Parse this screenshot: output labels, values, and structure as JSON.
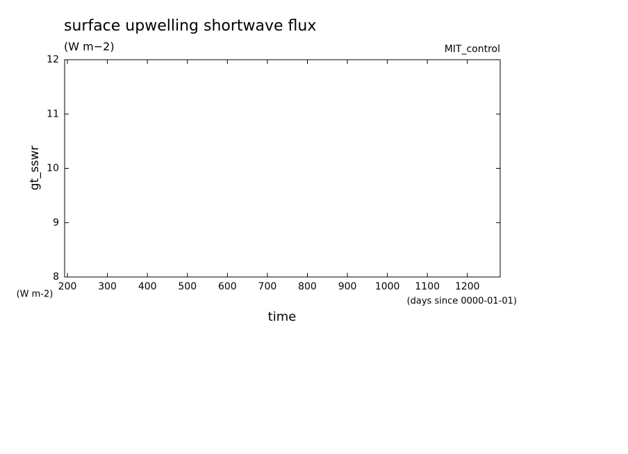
{
  "chart_data": {
    "type": "line",
    "title": "surface upwelling shortwave flux",
    "subtitle": "(W m−2)",
    "annotation": "MIT_control",
    "ylabel": "gt_sswr",
    "yunits": "(W m-2)",
    "xlabel": "time",
    "xunits": "(days since 0000-01-01)",
    "series": [],
    "xlim": [
      193,
      1282
    ],
    "xticks": [
      200,
      300,
      400,
      500,
      600,
      700,
      800,
      900,
      1000,
      1100,
      1200
    ],
    "ylim": [
      8,
      12
    ],
    "yticks": [
      8,
      9,
      10,
      11,
      12
    ]
  }
}
